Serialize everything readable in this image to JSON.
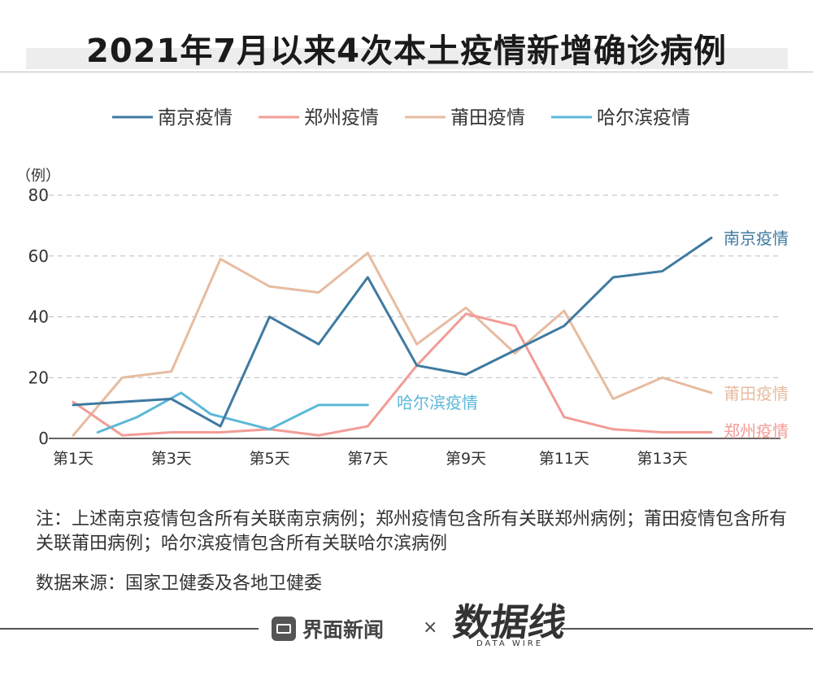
{
  "title": "2021年7月以来4次本土疫情新增确诊病例",
  "chart_data": {
    "type": "line",
    "y_unit": "（例）",
    "ylim": [
      0,
      80
    ],
    "y_ticks": [
      0,
      20,
      40,
      60,
      80
    ],
    "x_tick_labels": [
      "第1天",
      "第3天",
      "第5天",
      "第7天",
      "第9天",
      "第11天",
      "第13天"
    ],
    "x_tick_days": [
      1,
      3,
      5,
      7,
      9,
      11,
      13
    ],
    "x_range": [
      1,
      14
    ],
    "grid": true,
    "legend_position": "top",
    "series": [
      {
        "name": "南京疫情",
        "color": "#3f7aa0",
        "x": [
          1,
          2,
          3,
          4,
          5,
          6,
          7,
          8,
          9,
          10,
          11,
          12,
          13,
          14
        ],
        "values": [
          11,
          12,
          13,
          4,
          40,
          31,
          53,
          24,
          21,
          29,
          37,
          53,
          55,
          66
        ],
        "end_label": "南京疫情"
      },
      {
        "name": "郑州疫情",
        "color": "#f29c96",
        "x": [
          1,
          2,
          3,
          4,
          5,
          6,
          7,
          8,
          9,
          10,
          11,
          12,
          13,
          14
        ],
        "values": [
          12,
          1,
          2,
          2,
          3,
          1,
          4,
          24,
          41,
          37,
          7,
          3,
          2,
          2
        ],
        "end_label": "郑州疫情"
      },
      {
        "name": "莆田疫情",
        "color": "#e6bca1",
        "x": [
          1,
          2,
          3,
          4,
          5,
          6,
          7,
          8,
          9,
          10,
          11,
          12,
          13,
          14
        ],
        "values": [
          1,
          20,
          22,
          59,
          50,
          48,
          61,
          31,
          43,
          28,
          42,
          13,
          20,
          15
        ],
        "end_label": "莆田疫情"
      },
      {
        "name": "哈尔滨疫情",
        "color": "#5cb8d8",
        "x": [
          1.5,
          2.3,
          3.2,
          3.8,
          5,
          6,
          7
        ],
        "values": [
          2,
          7,
          15,
          8,
          3,
          11,
          11
        ],
        "end_label": "哈尔滨疫情"
      }
    ]
  },
  "note": "注：上述南京疫情包含所有关联南京病例；郑州疫情包含所有关联郑州病例；莆田疫情包含所有关联莆田病例；哈尔滨疫情包含所有关联哈尔滨病例",
  "source": "数据来源：国家卫健委及各地卫健委",
  "footer": {
    "brand": "界面新闻",
    "times": "×",
    "partner": "数据线",
    "partner_sub": "DATA WIRE"
  }
}
